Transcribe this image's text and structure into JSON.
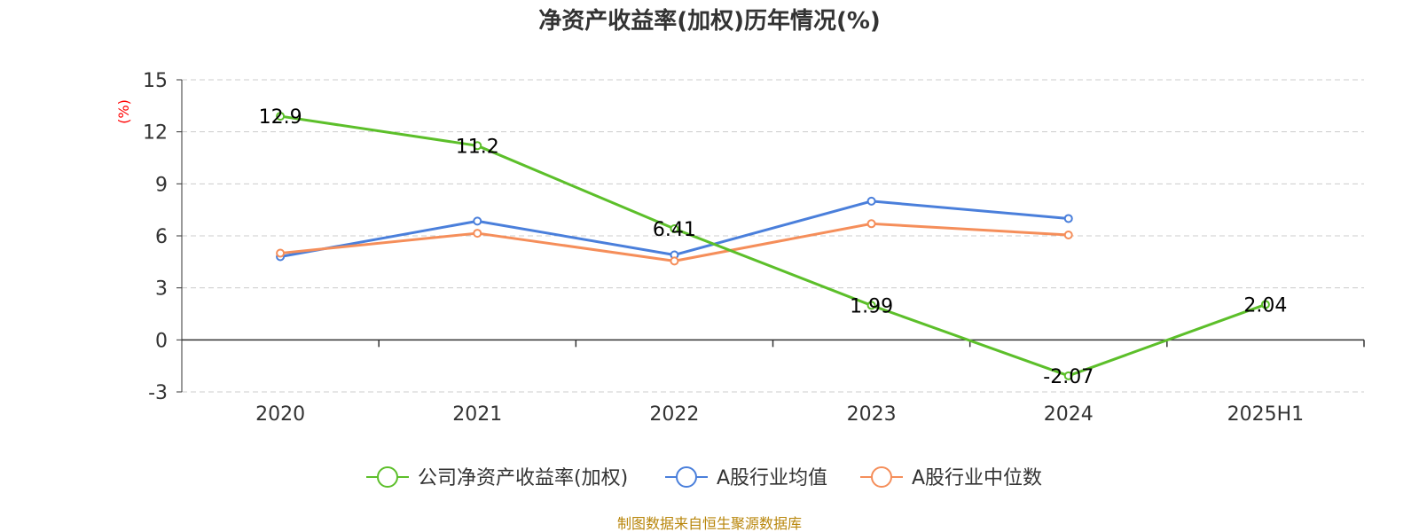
{
  "chart_data": {
    "type": "line",
    "title": "净资产收益率(加权)历年情况(%)",
    "ylabel": "(%)",
    "categories": [
      "2020",
      "2021",
      "2022",
      "2023",
      "2024",
      "2025H1"
    ],
    "yticks": [
      "15",
      "12",
      "9",
      "6",
      "3",
      "0",
      "-3"
    ],
    "ylim": [
      -3,
      15
    ],
    "grid": true,
    "legend_position": "bottom",
    "series": [
      {
        "name": "公司净资产收益率(加权)",
        "color": "#5cbf2a",
        "values": [
          12.9,
          11.2,
          6.41,
          1.99,
          -2.07,
          2.04
        ],
        "labels": [
          "12.9",
          "11.2",
          "6.41",
          "1.99",
          "-2.07",
          "2.04"
        ]
      },
      {
        "name": "A股行业均值",
        "color": "#4a7fdb",
        "values": [
          4.8,
          6.85,
          4.9,
          8.0,
          7.0,
          null
        ]
      },
      {
        "name": "A股行业中位数",
        "color": "#f58e5a",
        "values": [
          5.0,
          6.15,
          4.55,
          6.7,
          6.05,
          null
        ]
      }
    ],
    "source": "制图数据来自恒生聚源数据库"
  }
}
